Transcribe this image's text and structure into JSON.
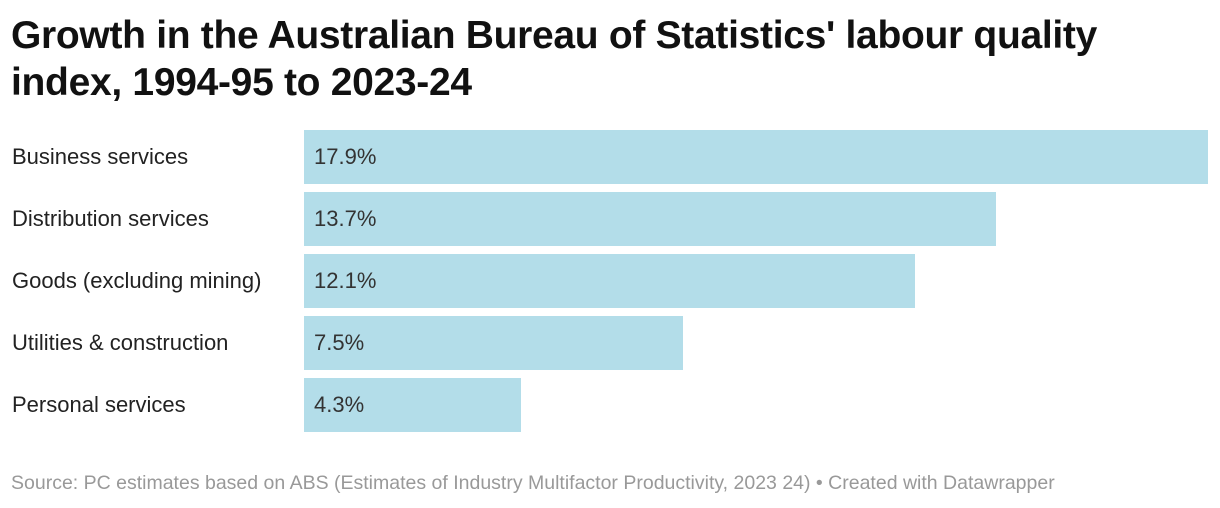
{
  "chart_data": {
    "type": "bar",
    "orientation": "horizontal",
    "title": "Growth in the Australian Bureau of Statistics' labour quality index, 1994-95 to 2023-24",
    "categories": [
      "Business services",
      "Distribution services",
      "Goods (excluding mining)",
      "Utilities & construction",
      "Personal services"
    ],
    "values": [
      17.9,
      13.7,
      12.1,
      7.5,
      4.3
    ],
    "value_labels": [
      "17.9%",
      "13.7%",
      "12.1%",
      "7.5%",
      "4.3%"
    ],
    "xlim": [
      0,
      17.9
    ],
    "xlabel": "",
    "ylabel": "",
    "bar_color": "#b3dde9",
    "grid": false
  },
  "footer": {
    "text": "Source: PC estimates based on ABS (Estimates of Industry Multifactor Productivity, 2023 24) • Created with Datawrapper"
  }
}
